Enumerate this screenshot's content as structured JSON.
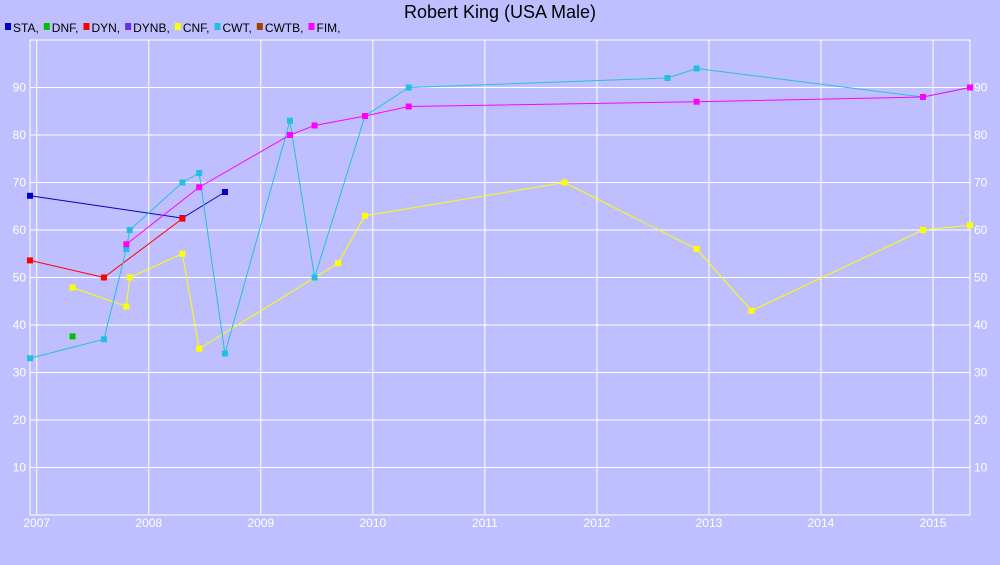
{
  "chart_data": {
    "type": "line",
    "title": "Robert King (USA Male)",
    "xlim": [
      2006.94,
      2015.33
    ],
    "xticks": [
      2007,
      2008,
      2009,
      2010,
      2011,
      2012,
      2013,
      2014,
      2015
    ],
    "ylim": [
      0,
      100
    ],
    "yticks": [
      10,
      20,
      30,
      40,
      50,
      60,
      70,
      80,
      90
    ],
    "grid": true,
    "series": [
      {
        "name": "STA,",
        "color": "#0000c8",
        "x": [
          2006.94,
          2008.3,
          2008.68
        ],
        "values": [
          67.2,
          62.5,
          68
        ]
      },
      {
        "name": "DNF,",
        "color": "#00c000",
        "x": [
          2007.32
        ],
        "values": [
          37.6
        ]
      },
      {
        "name": "DYN,",
        "color": "#ff0000",
        "x": [
          2006.94,
          2007.6,
          2008.3
        ],
        "values": [
          53.6,
          50,
          62.4
        ]
      },
      {
        "name": "DYNB,",
        "color": "#6a2ee6",
        "x": [],
        "values": []
      },
      {
        "name": "CNF,",
        "color": "#ffff00",
        "x": [
          2007.32,
          2007.8,
          2007.83,
          2008.3,
          2008.45,
          2009.69,
          2009.93,
          2011.71,
          2012.89,
          2013.38,
          2014.91,
          2015.33
        ],
        "values": [
          47.9,
          43.9,
          50,
          55,
          35,
          53,
          63,
          70,
          56,
          43,
          60,
          61
        ]
      },
      {
        "name": "CWT,",
        "color": "#22c0e0",
        "x": [
          2006.94,
          2007.6,
          2007.8,
          2007.83,
          2008.3,
          2008.45,
          2008.68,
          2009.26,
          2009.48,
          2009.93,
          2010.32,
          2012.63,
          2012.89,
          2014.91,
          2015.33
        ],
        "values": [
          33,
          37,
          56,
          60,
          70,
          72,
          34,
          83,
          50,
          84,
          90,
          92,
          94,
          88,
          90
        ]
      },
      {
        "name": "CWTB,",
        "color": "#a04000",
        "x": [],
        "values": []
      },
      {
        "name": "FIM,",
        "color": "#ff00ff",
        "x": [
          2007.8,
          2008.45,
          2009.26,
          2009.48,
          2009.93,
          2010.32,
          2012.89,
          2014.91,
          2015.33
        ],
        "values": [
          57,
          69,
          80,
          82,
          84,
          86,
          87,
          88,
          90
        ]
      }
    ]
  }
}
